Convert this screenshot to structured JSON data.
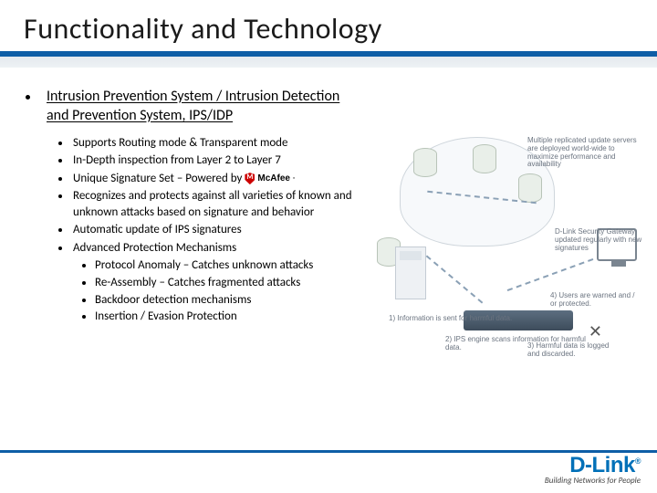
{
  "title": "Functionality and Technology",
  "heading": "Intrusion Prevention System / Intrusion Detection and Prevention System, IPS/IDP",
  "bullets": [
    "Supports Routing mode & Transparent mode",
    "In-Depth inspection from Layer 2 to Layer 7",
    "Unique Signature Set – Powered by",
    "Recognizes and protects against all varieties of known and unknown attacks based on signature and behavior",
    "Automatic update of IPS signatures",
    "Advanced Protection Mechanisms"
  ],
  "subbullets": [
    "Protocol Anomaly – Catches unknown attacks",
    "Re-Assembly – Catches fragmented attacks",
    "Backdoor detection mechanisms",
    "Insertion / Evasion Protection"
  ],
  "mcafee_label": "McAfee",
  "diagram_text": {
    "t1": "Multiple replicated update servers are deployed world-wide to maximize performance and availability",
    "t2": "D-Link Security Gateway updated regularly with new signatures",
    "t3": "4) Users are warned and / or protected.",
    "t4": "1) Information is sent for harmful data.",
    "t5": "2) IPS engine scans information for harmful data.",
    "t6": "3) Harmful data is logged and discarded."
  },
  "brand": {
    "logo": "D-Link",
    "tag": "Building Networks for People"
  },
  "colors": {
    "accent": "#0e5ea6",
    "brand_blue": "#0070b8"
  }
}
